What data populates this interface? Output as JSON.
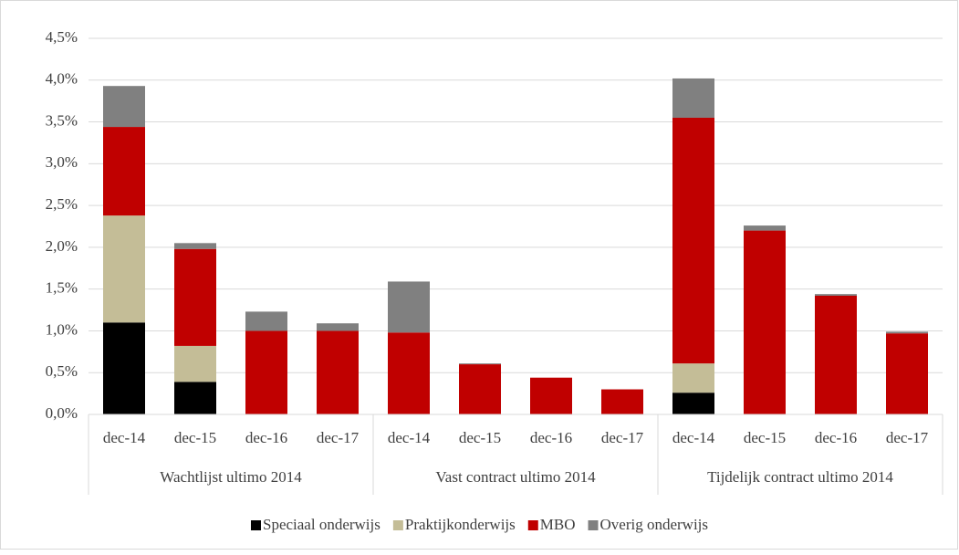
{
  "chart_data": {
    "type": "stacked_bar",
    "categories": [
      "dec-14",
      "dec-15",
      "dec-16",
      "dec-17",
      "dec-14",
      "dec-15",
      "dec-16",
      "dec-17",
      "dec-14",
      "dec-15",
      "dec-16",
      "dec-17"
    ],
    "category_groups": [
      "Wachtlijst ultimo 2014",
      "Vast contract ultimo 2014",
      "Tijdelijk contract ultimo 2014"
    ],
    "series": [
      {
        "name": "Speciaal onderwijs",
        "color": "#000000",
        "values": [
          1.1,
          0.39,
          0,
          0,
          0,
          0,
          0,
          0,
          0.26,
          0,
          0,
          0
        ]
      },
      {
        "name": "Praktijkonderwijs",
        "color": "#c4bd97",
        "values": [
          1.28,
          0.43,
          0,
          0,
          0,
          0,
          0,
          0,
          0.35,
          0,
          0,
          0
        ]
      },
      {
        "name": "MBO",
        "color": "#c00000",
        "values": [
          1.06,
          1.16,
          1.0,
          1.0,
          0.98,
          0.6,
          0.44,
          0.3,
          2.94,
          2.2,
          1.42,
          0.97
        ]
      },
      {
        "name": "Overig onderwijs",
        "color": "#808080",
        "values": [
          0.49,
          0.07,
          0.23,
          0.09,
          0.61,
          0.01,
          0,
          0,
          0.47,
          0.06,
          0.02,
          0.02
        ]
      }
    ],
    "ylim": [
      0,
      4.5
    ],
    "yticks": [
      {
        "value": 0,
        "label": "0,0%"
      },
      {
        "value": 0.5,
        "label": "0,5%"
      },
      {
        "value": 1,
        "label": "1,0%"
      },
      {
        "value": 1.5,
        "label": "1,5%"
      },
      {
        "value": 2,
        "label": "2,0%"
      },
      {
        "value": 2.5,
        "label": "2,5%"
      },
      {
        "value": 3,
        "label": "3,0%"
      },
      {
        "value": 3.5,
        "label": "3,5%"
      },
      {
        "value": 4,
        "label": "4,0%"
      },
      {
        "value": 4.5,
        "label": "4,5%"
      }
    ],
    "grid": true,
    "legend": "bottom"
  }
}
